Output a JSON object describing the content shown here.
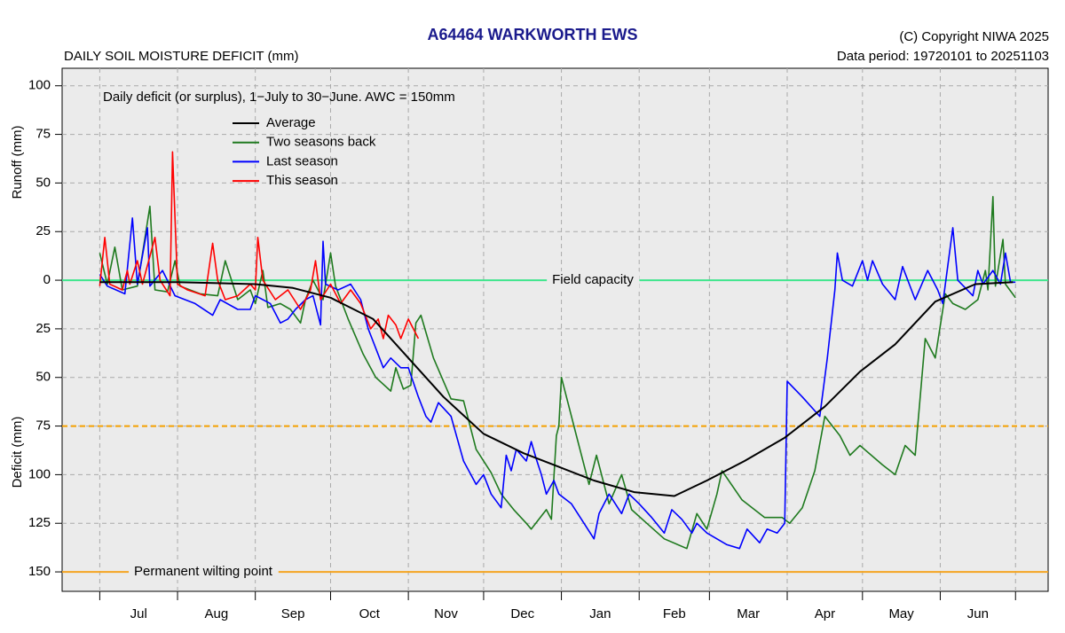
{
  "chart_data": {
    "type": "line",
    "title": "A64464  WARKWORTH EWS",
    "subtitle": "DAILY SOIL MOISTURE DEFICIT (mm)",
    "copyright": "(C) Copyright NIWA  2025",
    "data_period": "Data period:  19720101  to  20251103",
    "annotation": "Daily deficit (or surplus), 1−July to 30−June.  AWC = 150mm",
    "y_label_top": "Runoff (mm)",
    "y_label_bottom": "Deficit (mm)",
    "categories": [
      "Jul",
      "Aug",
      "Sep",
      "Oct",
      "Nov",
      "Dec",
      "Jan",
      "Feb",
      "Mar",
      "Apr",
      "May",
      "Jun"
    ],
    "xlim": [
      -15,
      378
    ],
    "xticks": [
      0,
      31,
      62,
      92,
      123,
      153,
      184,
      215,
      243,
      274,
      304,
      335,
      365
    ],
    "ylim": [
      -160,
      109
    ],
    "yticks": [
      100,
      75,
      50,
      25,
      0,
      {
        "value": -25,
        "label": "25"
      },
      {
        "value": -50,
        "label": "50"
      },
      {
        "value": -75,
        "label": "75"
      },
      {
        "value": -100,
        "label": "100"
      },
      {
        "value": -125,
        "label": "125"
      },
      {
        "value": -150,
        "label": "150"
      }
    ],
    "grid": true,
    "legend": "top-left",
    "reference_lines": [
      {
        "value": 0,
        "label": "Field capacity",
        "color": "#3ee68c",
        "dashed": false
      },
      {
        "value": -75,
        "color": "#f5a000",
        "dashed": true
      },
      {
        "value": -150,
        "label": "Permanent wilting point",
        "color": "#f5a623",
        "dashed": false
      }
    ],
    "series": [
      {
        "name": "Average",
        "color": "#000000",
        "x": [
          0,
          31,
          62,
          77,
          92,
          109,
          123,
          137,
          153,
          169,
          183,
          197,
          213,
          229,
          242,
          257,
          273,
          289,
          303,
          317,
          333,
          349,
          364
        ],
        "values": [
          -1,
          -1,
          -2,
          -4,
          -9,
          -20,
          -40,
          -60,
          -79,
          -89,
          -96,
          -103,
          -109,
          -111,
          -103,
          -93,
          -81,
          -65,
          -47,
          -33,
          -11,
          -2,
          -1
        ]
      },
      {
        "name": "Two seasons back",
        "color": "#1f7a1f",
        "x": [
          0,
          3,
          6,
          9,
          15,
          20,
          22,
          27,
          30,
          32,
          40,
          47,
          50,
          55,
          60,
          62,
          65,
          67,
          72,
          76,
          80,
          82,
          85,
          89,
          92,
          94,
          99,
          105,
          110,
          116,
          118,
          121,
          124,
          126,
          128,
          133,
          140,
          145,
          150,
          156,
          160,
          165,
          170,
          172,
          178,
          180,
          182,
          183,
          184,
          190,
          195,
          198,
          203,
          208,
          212,
          218,
          225,
          234,
          238,
          242,
          246,
          248,
          256,
          265,
          272,
          275,
          280,
          285,
          289,
          295,
          299,
          303,
          312,
          317,
          321,
          325,
          329,
          333,
          337,
          340,
          345,
          350,
          353,
          354,
          356,
          357,
          360,
          361,
          365
        ],
        "values": [
          14,
          -2,
          17,
          -5,
          -3,
          38,
          -5,
          -6,
          10,
          -3,
          -7,
          -8,
          10,
          -10,
          -5,
          -12,
          5,
          -14,
          -12,
          -15,
          -22,
          -10,
          0,
          -10,
          14,
          -3,
          -20,
          -38,
          -50,
          -57,
          -45,
          -56,
          -54,
          -22,
          -18,
          -40,
          -61,
          -62,
          -87,
          -99,
          -110,
          -118,
          -125,
          -128,
          -118,
          -123,
          -80,
          -75,
          -50,
          -80,
          -105,
          -90,
          -115,
          -100,
          -118,
          -125,
          -133,
          -138,
          -120,
          -128,
          -110,
          -98,
          -113,
          -122,
          -122,
          -125,
          -117,
          -98,
          -70,
          -80,
          -90,
          -85,
          -95,
          -100,
          -85,
          -90,
          -30,
          -40,
          -7,
          -12,
          -15,
          -10,
          5,
          -5,
          43,
          -3,
          21,
          -2,
          -9
        ]
      },
      {
        "name": "Last season",
        "color": "#0000ff",
        "x": [
          0,
          3,
          10,
          13,
          15,
          19,
          20,
          25,
          30,
          38,
          45,
          48,
          55,
          60,
          62,
          65,
          68,
          72,
          75,
          78,
          82,
          85,
          88,
          89,
          90,
          95,
          100,
          104,
          107,
          110,
          113,
          116,
          120,
          123,
          127,
          130,
          132,
          135,
          140,
          145,
          150,
          153,
          156,
          160,
          162,
          164,
          166,
          170,
          172,
          174,
          176,
          178,
          181,
          183,
          188,
          193,
          197,
          199,
          203,
          208,
          211,
          215,
          220,
          225,
          228,
          232,
          236,
          238,
          242,
          250,
          255,
          258,
          263,
          266,
          270,
          273,
          274,
          280,
          287,
          290,
          293,
          294,
          296,
          300,
          304,
          306,
          308,
          312,
          317,
          320,
          325,
          330,
          334,
          336,
          340,
          342,
          348,
          350,
          352,
          356,
          359,
          361,
          363,
          365
        ],
        "values": [
          3,
          -3,
          -7,
          32,
          -2,
          27,
          -3,
          5,
          -8,
          -12,
          -18,
          -10,
          -15,
          -15,
          -8,
          -10,
          -12,
          -22,
          -20,
          -15,
          -10,
          -8,
          -23,
          20,
          -2,
          -5,
          -2,
          -10,
          -25,
          -35,
          -45,
          -40,
          -45,
          -45,
          -60,
          -70,
          -73,
          -63,
          -70,
          -93,
          -105,
          -100,
          -110,
          -117,
          -90,
          -98,
          -87,
          -93,
          -83,
          -92,
          -100,
          -110,
          -103,
          -110,
          -115,
          -125,
          -133,
          -120,
          -110,
          -120,
          -110,
          -115,
          -122,
          -130,
          -118,
          -123,
          -130,
          -125,
          -130,
          -136,
          -138,
          -128,
          -135,
          -128,
          -130,
          -125,
          -52,
          -60,
          -70,
          -40,
          -5,
          14,
          0,
          -3,
          10,
          0,
          10,
          -2,
          -10,
          7,
          -10,
          5,
          -5,
          -12,
          27,
          0,
          -8,
          5,
          -2,
          5,
          -2,
          14,
          -1,
          -1
        ]
      },
      {
        "name": "This season",
        "color": "#ff0000",
        "x": [
          0,
          2,
          4,
          9,
          11,
          12,
          15,
          17,
          22,
          24,
          28,
          29,
          31,
          35,
          42,
          45,
          47,
          50,
          55,
          60,
          62,
          63,
          65,
          70,
          75,
          80,
          84,
          86,
          88,
          92,
          96,
          100,
          104,
          108,
          111,
          113,
          115,
          118,
          120,
          123,
          127
        ],
        "values": [
          -3,
          22,
          -2,
          -5,
          5,
          -2,
          10,
          -2,
          22,
          0,
          -8,
          66,
          -2,
          -5,
          -8,
          19,
          0,
          -10,
          -8,
          -2,
          -5,
          22,
          0,
          -10,
          -5,
          -15,
          -5,
          10,
          -10,
          -2,
          -12,
          -5,
          -12,
          -25,
          -20,
          -30,
          -18,
          -23,
          -30,
          -20,
          -30
        ]
      }
    ]
  }
}
